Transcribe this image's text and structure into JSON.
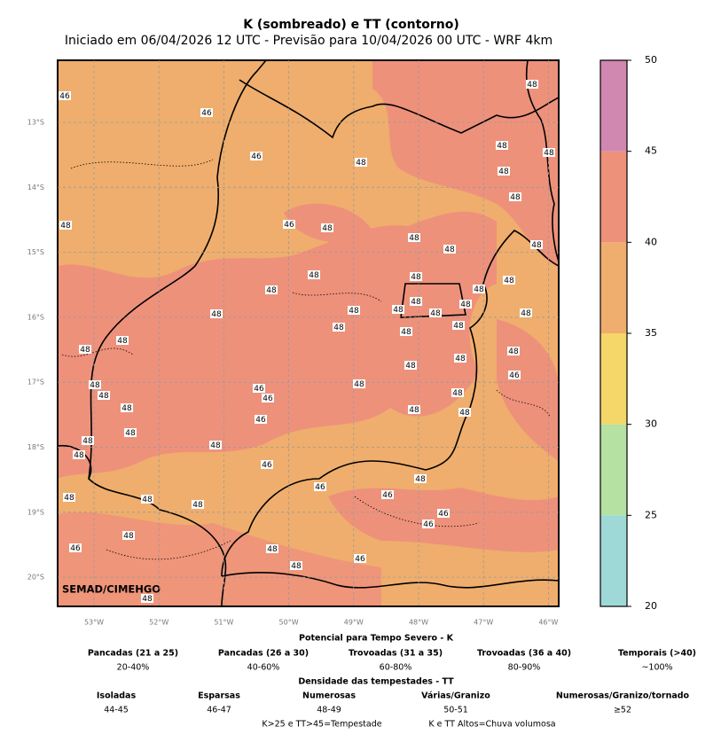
{
  "header": {
    "title": "K (sombreado) e TT (contorno)",
    "subtitle": "Iniciado em 06/04/2026 12 UTC - Previsão para 10/04/2026 00 UTC - WRF 4km"
  },
  "map": {
    "xticks": [
      "53°W",
      "52°W",
      "51°W",
      "50°W",
      "49°W",
      "48°W",
      "47°W",
      "46°W"
    ],
    "yticks": [
      "13°S",
      "14°S",
      "15°S",
      "16°S",
      "17°S",
      "18°S",
      "19°S",
      "20°S"
    ],
    "watermark": "SEMAD/CIMEHGO",
    "contour_labels": [
      46,
      46,
      46,
      48,
      48,
      48,
      48,
      48,
      48,
      48,
      46,
      48,
      48,
      48,
      48,
      48,
      48,
      48,
      48,
      48,
      48,
      48,
      48,
      48,
      48,
      48,
      48,
      48,
      48,
      48,
      48,
      48,
      48,
      48,
      48,
      46,
      48,
      46,
      48,
      48,
      46,
      48,
      48,
      48,
      48,
      46,
      48,
      48,
      48,
      48,
      46,
      48,
      46,
      46,
      48,
      48,
      48,
      46,
      46,
      48,
      46,
      48,
      46,
      48,
      48
    ]
  },
  "colorbar": {
    "ticks": [
      20,
      25,
      30,
      35,
      40,
      45,
      50
    ],
    "colors": [
      "#9ed9d8",
      "#b5e1a3",
      "#f4d669",
      "#efae6d",
      "#ee917b",
      "#d087b0"
    ]
  },
  "legend": {
    "k_title": "Potencial para Tempo Severo - K",
    "k_classes": [
      "Pancadas (21 a 25)",
      "Pancadas (26 a 30)",
      "Trovoadas (31 a 35)",
      "Trovoadas (36 a 40)",
      "Temporais (>40)"
    ],
    "k_probs": [
      "20-40%",
      "40-60%",
      "60-80%",
      "80-90%",
      "~100%"
    ],
    "tt_title": "Densidade das tempestades - TT",
    "tt_classes": [
      "Isoladas",
      "Esparsas",
      "Numerosas",
      "Várias/Granizo",
      "Numerosas/Granizo/tornado"
    ],
    "tt_ranges": [
      "44-45",
      "46-47",
      "48-49",
      "50-51",
      "≥52"
    ],
    "notes": [
      "K>25 e TT>45=Tempestade",
      "K e TT Altos=Chuva volumosa"
    ]
  }
}
